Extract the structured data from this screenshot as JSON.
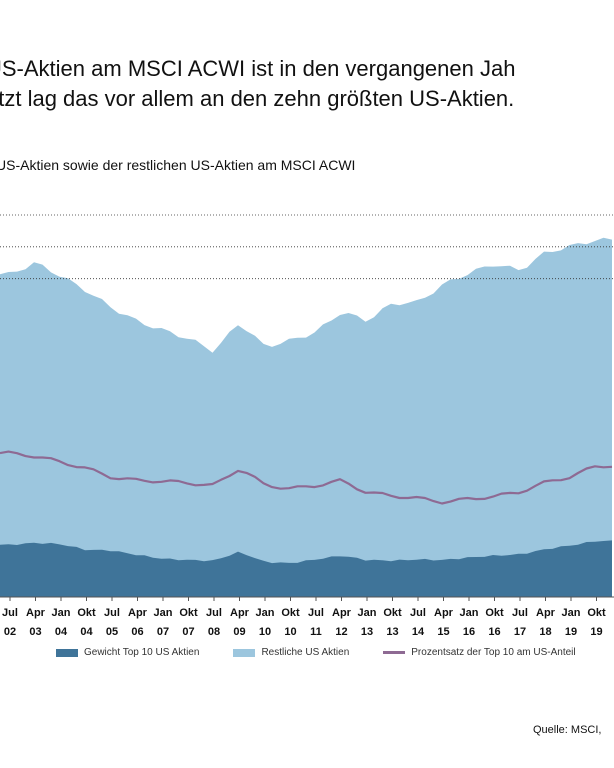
{
  "title_lines": [
    "US-Aktien am MSCI ACWI ist in den vergangenen Jah",
    "etzt lag das vor allem an den zehn größten US-Aktien."
  ],
  "subtitle": "US-Aktien sowie der restlichen US-Aktien am MSCI ACWI",
  "source": "Quelle: MSCI,",
  "colors": {
    "top10": "#3f7499",
    "rest": "#9cc6de",
    "line": "#8e6a93",
    "background": "#ffffff"
  },
  "chart_data": {
    "type": "area",
    "stacked": true,
    "x_ticks": [
      {
        "month": "Jul",
        "year": "02"
      },
      {
        "month": "Apr",
        "year": "03"
      },
      {
        "month": "Jan",
        "year": "04"
      },
      {
        "month": "Okt",
        "year": "04"
      },
      {
        "month": "Jul",
        "year": "05"
      },
      {
        "month": "Apr",
        "year": "06"
      },
      {
        "month": "Jan",
        "year": "07"
      },
      {
        "month": "Okt",
        "year": "07"
      },
      {
        "month": "Jul",
        "year": "08"
      },
      {
        "month": "Apr",
        "year": "09"
      },
      {
        "month": "Jan",
        "year": "10"
      },
      {
        "month": "Okt",
        "year": "10"
      },
      {
        "month": "Jul",
        "year": "11"
      },
      {
        "month": "Apr",
        "year": "12"
      },
      {
        "month": "Jan",
        "year": "13"
      },
      {
        "month": "Okt",
        "year": "13"
      },
      {
        "month": "Jul",
        "year": "14"
      },
      {
        "month": "Apr",
        "year": "15"
      },
      {
        "month": "Jan",
        "year": "16"
      },
      {
        "month": "Okt",
        "year": "16"
      },
      {
        "month": "Jul",
        "year": "17"
      },
      {
        "month": "Apr",
        "year": "18"
      },
      {
        "month": "Jan",
        "year": "19"
      },
      {
        "month": "Okt",
        "year": "19"
      }
    ],
    "grid_lines": 3,
    "legend": [
      "Gewicht Top 10 US Aktien",
      "Restliche US Aktien",
      "Prozentsatz der Top 10 am US-Anteil"
    ],
    "legend_placement": "bottom",
    "series": [
      {
        "name": "Gewicht Top 10 US Aktien",
        "values": [
          8.2,
          8.5,
          8.3,
          7.4,
          7.3,
          6.6,
          6.0,
          5.8,
          5.7,
          7.1,
          5.5,
          5.3,
          5.9,
          6.5,
          5.8,
          5.7,
          5.9,
          5.8,
          6.2,
          6.5,
          6.7,
          7.5,
          8.1,
          8.8
        ]
      },
      {
        "name": "Restliche US Aktien",
        "values": [
          42.5,
          44.0,
          42.1,
          40.7,
          38.1,
          36.7,
          35.9,
          34.8,
          32.9,
          36.0,
          33.8,
          35.0,
          35.7,
          38.3,
          37.6,
          40.4,
          40.4,
          43.3,
          44.7,
          45.8,
          44.6,
          46.6,
          47.0,
          47.3
        ]
      },
      {
        "name": "Prozentsatz der Top 10 am US-Anteil",
        "values": [
          22.6,
          22.1,
          21.2,
          20.2,
          18.8,
          18.3,
          18.2,
          17.9,
          17.5,
          20.2,
          17.6,
          17.0,
          17.5,
          18.3,
          16.4,
          15.9,
          15.5,
          14.9,
          15.4,
          15.8,
          16.5,
          18.0,
          18.9,
          20.6
        ]
      }
    ]
  }
}
